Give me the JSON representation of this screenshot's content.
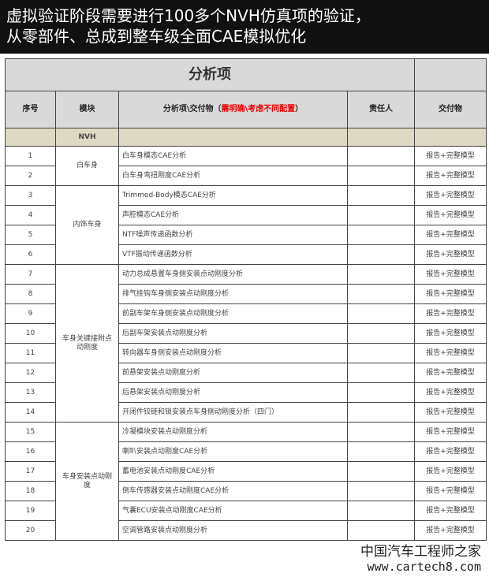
{
  "banner": {
    "line1": "虚拟验证阶段需要进行100多个NVH仿真项的验证，",
    "line2": "从零部件、总成到整车级全面CAE模拟优化"
  },
  "table": {
    "top_title": "分析项",
    "headers": {
      "no": "序号",
      "module": "模块",
      "item": "分析项\\交付物（",
      "item_red": "需明确\\考虑不同配置",
      "item_end": "）",
      "owner": "责任人",
      "deliverable": "交付物"
    },
    "section": "NVH",
    "rows": [
      {
        "no": "1",
        "item": "白车身模态CAE分析",
        "deliverable": "报告+完整模型"
      },
      {
        "no": "2",
        "item": "白车身弯扭刚度CAE分析",
        "deliverable": "报告+完整模型"
      },
      {
        "no": "3",
        "item": "Trimmed-Body模态CAE分析",
        "deliverable": "报告+完整模型"
      },
      {
        "no": "4",
        "item": "声腔模态CAE分析",
        "deliverable": "报告+完整模型"
      },
      {
        "no": "5",
        "item": "NTF噪声传递函数分析",
        "deliverable": "报告+完整模型"
      },
      {
        "no": "6",
        "item": "VTF振动传递函数分析",
        "deliverable": "报告+完整模型"
      },
      {
        "no": "7",
        "item": "动力总成悬置车身侧安装点动刚度分析",
        "deliverable": "报告+完整模型"
      },
      {
        "no": "8",
        "item": "排气挂钩车身侧安装点动刚度分析",
        "deliverable": "报告+完整模型"
      },
      {
        "no": "9",
        "item": "前副车架车身侧安装点动刚度分析",
        "deliverable": "报告+完整模型"
      },
      {
        "no": "10",
        "item": "后副车架安装点动刚度分析",
        "deliverable": "报告+完整模型"
      },
      {
        "no": "11",
        "item": "转向器车身侧安装点动刚度分析",
        "deliverable": "报告+完整模型"
      },
      {
        "no": "12",
        "item": "前悬架安装点动刚度分析",
        "deliverable": "报告+完整模型"
      },
      {
        "no": "13",
        "item": "后悬架安装点动刚度分析",
        "deliverable": "报告+完整模型"
      },
      {
        "no": "14",
        "item": "开闭件铰链和锁安装点车身侧动刚度分析（四门）",
        "deliverable": "报告+完整模型"
      },
      {
        "no": "15",
        "item": "冷凝模块安装点动刚度分析",
        "deliverable": "报告+完整模型"
      },
      {
        "no": "16",
        "item": "喇叭安装点动刚度CAE分析",
        "deliverable": "报告+完整模型"
      },
      {
        "no": "17",
        "item": "蓄电池安装点动刚度CAE分析",
        "deliverable": "报告+完整模型"
      },
      {
        "no": "18",
        "item": "倒车传感器安装点动刚度CAE分析",
        "deliverable": "报告+完整模型"
      },
      {
        "no": "19",
        "item": "气囊ECU安装点动刚度CAE分析",
        "deliverable": "报告+完整模型"
      },
      {
        "no": "20",
        "item": "空调管路安装点动刚度分析",
        "deliverable": "报告+完整模型"
      }
    ],
    "modules": [
      "白车身",
      "内饰车身",
      "车身关键接附点动刚度",
      "车身安装点动刚度"
    ]
  },
  "watermark": {
    "line1": "中国汽车工程师之家",
    "line2": "www.cartech8.com"
  }
}
